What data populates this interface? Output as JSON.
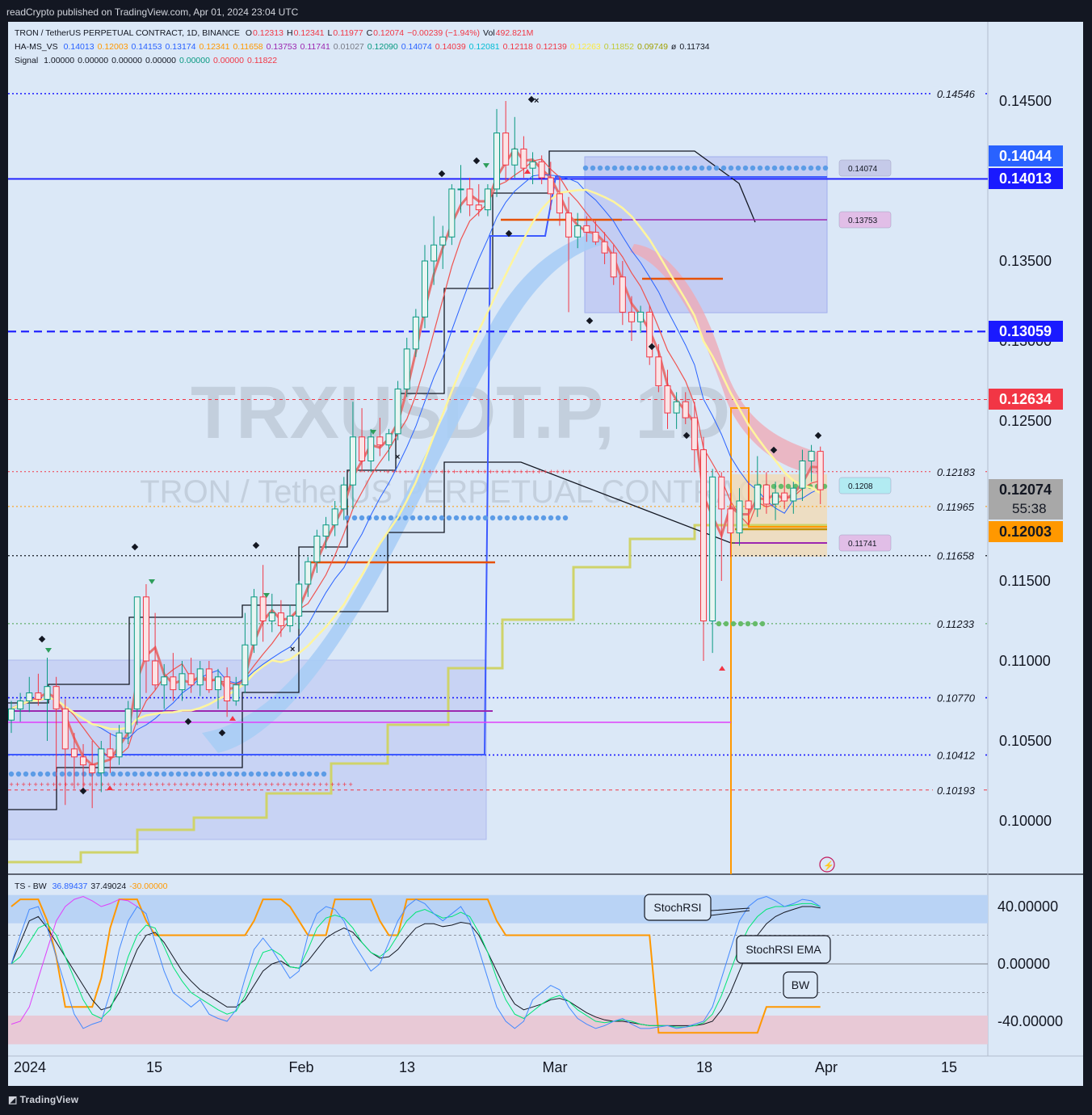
{
  "publisher": "readCrypto published on TradingView.com, Apr 01, 2024 23:04 UTC",
  "footer": "TradingView",
  "watermark": {
    "symbol": "TRXUSDT.P, 1D",
    "name": "TRON / TetherUS PERPETUAL CONTRACT"
  },
  "legend": {
    "title": "TRON / TetherUS PERPETUAL CONTRACT, 1D, BINANCE",
    "ohlc": [
      [
        "O",
        "0.12313"
      ],
      [
        "H",
        "0.12341"
      ],
      [
        "L",
        "0.11977"
      ],
      [
        "C",
        "0.12074"
      ],
      [
        "",
        "−0.00239 (−1.94%)"
      ],
      [
        "Vol",
        "492.821M"
      ]
    ],
    "hams_label": "HA-MS_VS",
    "hams_values": [
      {
        "v": "0.14013",
        "c": "#2962ff"
      },
      {
        "v": "0.12003",
        "c": "#ff9800"
      },
      {
        "v": "0.14153",
        "c": "#2962ff"
      },
      {
        "v": "0.13174",
        "c": "#2962ff"
      },
      {
        "v": "0.12341",
        "c": "#ff9800"
      },
      {
        "v": "0.11658",
        "c": "#ff9800"
      },
      {
        "v": "0.13753",
        "c": "#9c27b0"
      },
      {
        "v": "0.11741",
        "c": "#9c27b0"
      },
      {
        "v": "0.01027",
        "c": "#787b86"
      },
      {
        "v": "0.12090",
        "c": "#089981"
      },
      {
        "v": "0.14074",
        "c": "#2962ff"
      },
      {
        "v": "0.14039",
        "c": "#f23645"
      },
      {
        "v": "0.12081",
        "c": "#00bcd4"
      },
      {
        "v": "0.12118",
        "c": "#f23645"
      },
      {
        "v": "0.12139",
        "c": "#f23645"
      },
      {
        "v": "0.12263",
        "c": "#ffeb3b"
      },
      {
        "v": "0.11852",
        "c": "#c0ca33"
      },
      {
        "v": "0.09749",
        "c": "#a0a000"
      },
      {
        "v": "ø",
        "c": "#131722"
      },
      {
        "v": "0.11734",
        "c": "#131722"
      }
    ],
    "signal_label": "Signal",
    "signal_values": [
      {
        "v": "1.00000",
        "c": "#131722"
      },
      {
        "v": "0.00000",
        "c": "#131722"
      },
      {
        "v": "0.00000",
        "c": "#131722"
      },
      {
        "v": "0.00000",
        "c": "#131722"
      },
      {
        "v": "0.00000",
        "c": "#089981"
      },
      {
        "v": "0.00000",
        "c": "#f23645"
      },
      {
        "v": "0.11822",
        "c": "#f23645"
      }
    ],
    "ts_label": "TS - BW",
    "ts_values": [
      {
        "v": "36.89437",
        "c": "#2962ff"
      },
      {
        "v": "37.49024",
        "c": "#131722"
      },
      {
        "v": "-30.00000",
        "c": "#ff9800"
      }
    ]
  },
  "price_axis": {
    "ticks": [
      "0.14500",
      "0.13500",
      "0.12500",
      "0.11500",
      "0.11000",
      "0.10500",
      "0.10000"
    ],
    "hidden_tick": "0.13000"
  },
  "price_badges": [
    {
      "value": "0.14044",
      "bg": "#2962ff",
      "fg": "#ffffff"
    },
    {
      "value": "0.14013",
      "bg": "#1a1aff",
      "fg": "#ffffff"
    },
    {
      "value": "0.13059",
      "bg": "#1a1aff",
      "fg": "#ffffff"
    },
    {
      "value": "0.12634",
      "bg": "#f23645",
      "fg": "#ffffff"
    },
    {
      "value": "0.12074",
      "sub": "55:38",
      "bg": "#a8a8a8",
      "fg": "#131722"
    },
    {
      "value": "0.12003",
      "bg": "#ff9800",
      "fg": "#131722"
    }
  ],
  "level_labels": [
    "0.14546",
    "0.12183",
    "0.11965",
    "0.11658",
    "0.11233",
    "0.10770",
    "0.10412",
    "0.10193"
  ],
  "chip_labels": [
    {
      "text": "0.14074",
      "bg": "#c5cae9"
    },
    {
      "text": "0.13753",
      "bg": "#e1bee7"
    },
    {
      "text": "0.1208",
      "bg": "#b2ebf2"
    },
    {
      "text": "0.11741",
      "bg": "#e1bee7"
    }
  ],
  "osc_axis": {
    "ticks": [
      "40.00000",
      "0.00000",
      "-40.00000"
    ]
  },
  "osc_callouts": [
    "StochRSI",
    "StochRSI EMA",
    "BW"
  ],
  "time_axis": {
    "labels": [
      "2024",
      "15",
      "Feb",
      "13",
      "Mar",
      "18",
      "Apr",
      "15"
    ]
  },
  "colors": {
    "bg": "#dbe8f7",
    "up": "#089981",
    "down": "#f23645",
    "panel": "#131722"
  },
  "chart_data": {
    "type": "candlestick",
    "symbol": "TRON / TetherUS PERPETUAL CONTRACT",
    "interval": "1D",
    "exchange": "BINANCE",
    "ylim": [
      0.0965,
      0.1475
    ],
    "candles": [
      {
        "o": 0.1063,
        "h": 0.1075,
        "l": 0.1055,
        "c": 0.107
      },
      {
        "o": 0.107,
        "h": 0.108,
        "l": 0.1062,
        "c": 0.1075
      },
      {
        "o": 0.1075,
        "h": 0.109,
        "l": 0.1068,
        "c": 0.108
      },
      {
        "o": 0.108,
        "h": 0.1092,
        "l": 0.1072,
        "c": 0.1076
      },
      {
        "o": 0.1076,
        "h": 0.1102,
        "l": 0.105,
        "c": 0.1084
      },
      {
        "o": 0.1084,
        "h": 0.109,
        "l": 0.102,
        "c": 0.107
      },
      {
        "o": 0.107,
        "h": 0.1076,
        "l": 0.101,
        "c": 0.1045
      },
      {
        "o": 0.1045,
        "h": 0.1055,
        "l": 0.102,
        "c": 0.104
      },
      {
        "o": 0.104,
        "h": 0.1048,
        "l": 0.1018,
        "c": 0.1035
      },
      {
        "o": 0.1035,
        "h": 0.105,
        "l": 0.1008,
        "c": 0.103
      },
      {
        "o": 0.103,
        "h": 0.105,
        "l": 0.1018,
        "c": 0.1045
      },
      {
        "o": 0.1045,
        "h": 0.1055,
        "l": 0.103,
        "c": 0.104
      },
      {
        "o": 0.104,
        "h": 0.106,
        "l": 0.1035,
        "c": 0.1055
      },
      {
        "o": 0.1055,
        "h": 0.1075,
        "l": 0.1048,
        "c": 0.107
      },
      {
        "o": 0.107,
        "h": 0.114,
        "l": 0.106,
        "c": 0.114
      },
      {
        "o": 0.114,
        "h": 0.1148,
        "l": 0.108,
        "c": 0.11
      },
      {
        "o": 0.11,
        "h": 0.113,
        "l": 0.1082,
        "c": 0.1085
      },
      {
        "o": 0.1085,
        "h": 0.1098,
        "l": 0.107,
        "c": 0.109
      },
      {
        "o": 0.109,
        "h": 0.1105,
        "l": 0.1075,
        "c": 0.1082
      },
      {
        "o": 0.1082,
        "h": 0.11,
        "l": 0.1075,
        "c": 0.1092
      },
      {
        "o": 0.1092,
        "h": 0.1102,
        "l": 0.108,
        "c": 0.1085
      },
      {
        "o": 0.1085,
        "h": 0.11,
        "l": 0.1078,
        "c": 0.1095
      },
      {
        "o": 0.1095,
        "h": 0.11,
        "l": 0.108,
        "c": 0.1082
      },
      {
        "o": 0.1082,
        "h": 0.1095,
        "l": 0.107,
        "c": 0.109
      },
      {
        "o": 0.109,
        "h": 0.1096,
        "l": 0.1065,
        "c": 0.1075
      },
      {
        "o": 0.1075,
        "h": 0.109,
        "l": 0.1072,
        "c": 0.1085
      },
      {
        "o": 0.1085,
        "h": 0.113,
        "l": 0.108,
        "c": 0.111
      },
      {
        "o": 0.111,
        "h": 0.1145,
        "l": 0.1105,
        "c": 0.114
      },
      {
        "o": 0.114,
        "h": 0.116,
        "l": 0.1112,
        "c": 0.1125
      },
      {
        "o": 0.1125,
        "h": 0.1142,
        "l": 0.1118,
        "c": 0.113
      },
      {
        "o": 0.113,
        "h": 0.1138,
        "l": 0.1115,
        "c": 0.1122
      },
      {
        "o": 0.1122,
        "h": 0.1135,
        "l": 0.1118,
        "c": 0.1128
      },
      {
        "o": 0.1128,
        "h": 0.115,
        "l": 0.112,
        "c": 0.1148
      },
      {
        "o": 0.1148,
        "h": 0.1165,
        "l": 0.114,
        "c": 0.1162
      },
      {
        "o": 0.1162,
        "h": 0.1182,
        "l": 0.1155,
        "c": 0.1178
      },
      {
        "o": 0.1178,
        "h": 0.119,
        "l": 0.117,
        "c": 0.1185
      },
      {
        "o": 0.1185,
        "h": 0.12,
        "l": 0.1178,
        "c": 0.1195
      },
      {
        "o": 0.1195,
        "h": 0.1215,
        "l": 0.1188,
        "c": 0.121
      },
      {
        "o": 0.121,
        "h": 0.1262,
        "l": 0.1195,
        "c": 0.124
      },
      {
        "o": 0.124,
        "h": 0.1258,
        "l": 0.1218,
        "c": 0.1225
      },
      {
        "o": 0.1225,
        "h": 0.1245,
        "l": 0.1218,
        "c": 0.124
      },
      {
        "o": 0.124,
        "h": 0.1252,
        "l": 0.1228,
        "c": 0.1235
      },
      {
        "o": 0.1235,
        "h": 0.1245,
        "l": 0.1225,
        "c": 0.1242
      },
      {
        "o": 0.1242,
        "h": 0.1275,
        "l": 0.1238,
        "c": 0.127
      },
      {
        "o": 0.127,
        "h": 0.1302,
        "l": 0.1265,
        "c": 0.1295
      },
      {
        "o": 0.1295,
        "h": 0.132,
        "l": 0.129,
        "c": 0.1315
      },
      {
        "o": 0.1315,
        "h": 0.136,
        "l": 0.1308,
        "c": 0.135
      },
      {
        "o": 0.135,
        "h": 0.1378,
        "l": 0.1335,
        "c": 0.136
      },
      {
        "o": 0.136,
        "h": 0.1372,
        "l": 0.1345,
        "c": 0.1365
      },
      {
        "o": 0.1365,
        "h": 0.1398,
        "l": 0.136,
        "c": 0.1395
      },
      {
        "o": 0.1395,
        "h": 0.141,
        "l": 0.138,
        "c": 0.1395
      },
      {
        "o": 0.1395,
        "h": 0.1402,
        "l": 0.1378,
        "c": 0.1385
      },
      {
        "o": 0.1385,
        "h": 0.1398,
        "l": 0.1378,
        "c": 0.1382
      },
      {
        "o": 0.1382,
        "h": 0.1398,
        "l": 0.1378,
        "c": 0.1395
      },
      {
        "o": 0.1395,
        "h": 0.1445,
        "l": 0.139,
        "c": 0.143
      },
      {
        "o": 0.143,
        "h": 0.145,
        "l": 0.14,
        "c": 0.141
      },
      {
        "o": 0.141,
        "h": 0.144,
        "l": 0.1402,
        "c": 0.142
      },
      {
        "o": 0.142,
        "h": 0.1428,
        "l": 0.1402,
        "c": 0.1408
      },
      {
        "o": 0.1408,
        "h": 0.1418,
        "l": 0.1398,
        "c": 0.1412
      },
      {
        "o": 0.1412,
        "h": 0.1416,
        "l": 0.1398,
        "c": 0.1402
      },
      {
        "o": 0.1402,
        "h": 0.1412,
        "l": 0.1382,
        "c": 0.1392
      },
      {
        "o": 0.1392,
        "h": 0.1402,
        "l": 0.1372,
        "c": 0.138
      },
      {
        "o": 0.138,
        "h": 0.139,
        "l": 0.1318,
        "c": 0.1365
      },
      {
        "o": 0.1365,
        "h": 0.138,
        "l": 0.1358,
        "c": 0.1372
      },
      {
        "o": 0.1372,
        "h": 0.1378,
        "l": 0.1362,
        "c": 0.1368
      },
      {
        "o": 0.1368,
        "h": 0.1375,
        "l": 0.136,
        "c": 0.1362
      },
      {
        "o": 0.1362,
        "h": 0.1368,
        "l": 0.1348,
        "c": 0.1355
      },
      {
        "o": 0.1355,
        "h": 0.136,
        "l": 0.1335,
        "c": 0.134
      },
      {
        "o": 0.134,
        "h": 0.135,
        "l": 0.131,
        "c": 0.1318
      },
      {
        "o": 0.1318,
        "h": 0.1328,
        "l": 0.13,
        "c": 0.1312
      },
      {
        "o": 0.1312,
        "h": 0.1322,
        "l": 0.1305,
        "c": 0.1318
      },
      {
        "o": 0.1318,
        "h": 0.1322,
        "l": 0.1285,
        "c": 0.129
      },
      {
        "o": 0.129,
        "h": 0.1298,
        "l": 0.1268,
        "c": 0.1272
      },
      {
        "o": 0.1272,
        "h": 0.1282,
        "l": 0.1245,
        "c": 0.1255
      },
      {
        "o": 0.1255,
        "h": 0.1268,
        "l": 0.1245,
        "c": 0.1262
      },
      {
        "o": 0.1262,
        "h": 0.1268,
        "l": 0.1248,
        "c": 0.1252
      },
      {
        "o": 0.1252,
        "h": 0.1262,
        "l": 0.1218,
        "c": 0.1232
      },
      {
        "o": 0.1232,
        "h": 0.124,
        "l": 0.11,
        "c": 0.1125
      },
      {
        "o": 0.1125,
        "h": 0.122,
        "l": 0.1105,
        "c": 0.1215
      },
      {
        "o": 0.1215,
        "h": 0.1218,
        "l": 0.115,
        "c": 0.1195
      },
      {
        "o": 0.1195,
        "h": 0.1205,
        "l": 0.1165,
        "c": 0.118
      },
      {
        "o": 0.118,
        "h": 0.1208,
        "l": 0.1172,
        "c": 0.12
      },
      {
        "o": 0.12,
        "h": 0.1212,
        "l": 0.1185,
        "c": 0.1195
      },
      {
        "o": 0.1195,
        "h": 0.1228,
        "l": 0.119,
        "c": 0.121
      },
      {
        "o": 0.121,
        "h": 0.1218,
        "l": 0.1192,
        "c": 0.1198
      },
      {
        "o": 0.1198,
        "h": 0.1212,
        "l": 0.1188,
        "c": 0.1205
      },
      {
        "o": 0.1205,
        "h": 0.1215,
        "l": 0.1195,
        "c": 0.12
      },
      {
        "o": 0.12,
        "h": 0.1212,
        "l": 0.1192,
        "c": 0.1208
      },
      {
        "o": 0.1208,
        "h": 0.1232,
        "l": 0.12,
        "c": 0.1225
      },
      {
        "o": 0.1225,
        "h": 0.1235,
        "l": 0.1212,
        "c": 0.1231
      },
      {
        "o": 0.1231,
        "h": 0.1234,
        "l": 0.1198,
        "c": 0.1207
      }
    ],
    "horizontal_levels": [
      0.14546,
      0.14013,
      0.13059,
      0.12634,
      0.12183,
      0.11965,
      0.11658,
      0.11233,
      0.1077,
      0.10412,
      0.10193
    ],
    "last_price": 0.12074,
    "oscillator": {
      "name": "TS - BW",
      "ylim": [
        -45,
        48
      ],
      "bands": [
        40,
        0,
        -40
      ],
      "stochrsi": [
        0,
        20,
        38,
        40,
        25,
        5,
        -15,
        -35,
        -45,
        -42,
        -40,
        -20,
        10,
        30,
        40,
        35,
        15,
        -5,
        -20,
        -25,
        -30,
        -25,
        -35,
        -38,
        -40,
        -32,
        -10,
        10,
        18,
        10,
        0,
        -10,
        -5,
        20,
        35,
        40,
        38,
        30,
        15,
        5,
        -5,
        0,
        15,
        30,
        40,
        45,
        42,
        35,
        30,
        35,
        40,
        30,
        10,
        -10,
        -30,
        -40,
        -45,
        -40,
        -25,
        -20,
        -15,
        -18,
        -30,
        -38,
        -42,
        -45,
        -43,
        -40,
        -38,
        -42,
        -45,
        -45,
        -44,
        -43,
        -45,
        -44,
        -42,
        -40,
        -30,
        -10,
        10,
        30,
        40,
        45,
        47,
        44,
        40,
        42,
        45,
        44,
        40
      ],
      "stochrsi_ema": [
        0,
        5,
        15,
        25,
        28,
        20,
        5,
        -10,
        -25,
        -35,
        -38,
        -32,
        -15,
        5,
        20,
        27,
        25,
        12,
        -2,
        -12,
        -20,
        -24,
        -28,
        -32,
        -35,
        -33,
        -22,
        -5,
        8,
        10,
        6,
        -2,
        -3,
        10,
        25,
        32,
        34,
        32,
        25,
        15,
        8,
        5,
        10,
        20,
        30,
        36,
        38,
        35,
        32,
        33,
        36,
        33,
        22,
        8,
        -10,
        -25,
        -35,
        -38,
        -33,
        -28,
        -24,
        -22,
        -26,
        -32,
        -36,
        -40,
        -41,
        -40,
        -39,
        -40,
        -42,
        -43,
        -43,
        -43,
        -44,
        -44,
        -43,
        -41,
        -35,
        -22,
        -5,
        12,
        25,
        33,
        38,
        40,
        40,
        41,
        42,
        42,
        40
      ],
      "signal_line": [
        0,
        15,
        30,
        33,
        25,
        15,
        5,
        -5,
        -15,
        -25,
        -32,
        -30,
        -20,
        -5,
        10,
        20,
        22,
        15,
        5,
        -5,
        -12,
        -18,
        -22,
        -26,
        -30,
        -30,
        -25,
        -15,
        -5,
        0,
        2,
        -2,
        -3,
        2,
        10,
        18,
        22,
        25,
        22,
        15,
        8,
        4,
        5,
        10,
        18,
        25,
        28,
        28,
        26,
        27,
        29,
        28,
        20,
        8,
        -5,
        -18,
        -28,
        -32,
        -30,
        -28,
        -25,
        -24,
        -26,
        -30,
        -34,
        -37,
        -39,
        -40,
        -40,
        -41,
        -42,
        -43,
        -43,
        -43,
        -43,
        -43,
        -43,
        -42,
        -40,
        -32,
        -20,
        -5,
        10,
        20,
        28,
        33,
        36,
        38,
        40,
        40,
        39
      ],
      "bw": [
        40,
        45,
        45,
        45,
        30,
        5,
        -30,
        -30,
        -30,
        -30,
        -10,
        25,
        45,
        45,
        45,
        30,
        20,
        20,
        20,
        20,
        20,
        20,
        20,
        20,
        20,
        20,
        20,
        30,
        45,
        45,
        45,
        40,
        30,
        20,
        20,
        20,
        45,
        45,
        45,
        45,
        45,
        30,
        20,
        20,
        45,
        45,
        45,
        45,
        45,
        45,
        45,
        45,
        45,
        45,
        30,
        20,
        20,
        20,
        20,
        20,
        20,
        20,
        20,
        20,
        20,
        20,
        20,
        20,
        20,
        20,
        20,
        20,
        -48,
        -48,
        -48,
        -48,
        -48,
        -48,
        -48,
        -48,
        -48,
        -48,
        -48,
        -48,
        -30,
        -30,
        -30,
        -30,
        -30,
        -30,
        -30
      ]
    }
  }
}
